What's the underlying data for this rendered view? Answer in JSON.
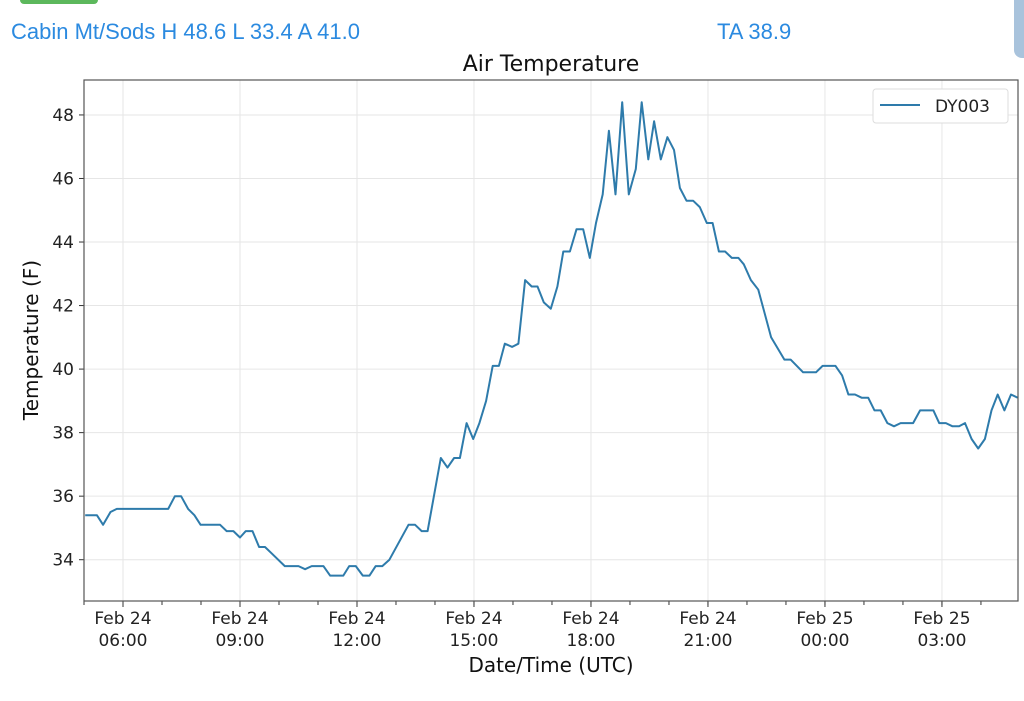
{
  "header": {
    "station_summary": "Cabin Mt/Sods H 48.6 L 33.4 A 41.0",
    "current": "TA 38.9"
  },
  "colors": {
    "line": "#2e7bab",
    "header_text": "#2b8ae0",
    "tab": "#5cb85c"
  },
  "chart_data": {
    "type": "line",
    "title": "Air Temperature",
    "xlabel": "Date/Time (UTC)",
    "ylabel": "Temperature (F)",
    "x_units": "hours since Feb 24 00:00 UTC",
    "xlim": [
      5.0,
      28.95
    ],
    "ylim": [
      32.7,
      49.1
    ],
    "grid": true,
    "legend_position": "top-right",
    "yticks": [
      34,
      36,
      38,
      40,
      42,
      44,
      46,
      48
    ],
    "ytick_labels": [
      "34",
      "36",
      "38",
      "40",
      "42",
      "44",
      "46",
      "48"
    ],
    "xticks": [
      6,
      9,
      12,
      15,
      18,
      21,
      24,
      27
    ],
    "xtick_labels": [
      [
        "Feb 24",
        "06:00"
      ],
      [
        "Feb 24",
        "09:00"
      ],
      [
        "Feb 24",
        "12:00"
      ],
      [
        "Feb 24",
        "15:00"
      ],
      [
        "Feb 24",
        "18:00"
      ],
      [
        "Feb 24",
        "21:00"
      ],
      [
        "Feb 25",
        "00:00"
      ],
      [
        "Feb 25",
        "03:00"
      ]
    ],
    "series": [
      {
        "name": "DY003",
        "x": [
          5.03,
          5.33,
          5.49,
          5.68,
          5.84,
          7.16,
          7.33,
          7.49,
          7.67,
          7.83,
          7.99,
          8.49,
          8.66,
          8.83,
          9.0,
          9.15,
          9.32,
          9.49,
          9.64,
          9.81,
          10.15,
          10.5,
          10.67,
          10.84,
          11.14,
          11.31,
          11.65,
          11.8,
          11.97,
          12.15,
          12.32,
          12.48,
          12.65,
          12.83,
          13.32,
          13.49,
          13.66,
          13.81,
          14.15,
          14.32,
          14.49,
          14.64,
          14.81,
          14.98,
          15.14,
          15.31,
          15.48,
          15.64,
          15.79,
          15.98,
          16.14,
          16.31,
          16.48,
          16.63,
          16.79,
          16.97,
          17.14,
          17.29,
          17.46,
          17.63,
          17.8,
          17.97,
          18.13,
          18.3,
          18.46,
          18.63,
          18.8,
          18.97,
          19.15,
          19.3,
          19.47,
          19.62,
          19.79,
          19.96,
          20.13,
          20.28,
          20.45,
          20.62,
          20.79,
          20.97,
          21.12,
          21.28,
          21.44,
          21.61,
          21.78,
          21.92,
          22.1,
          22.29,
          22.62,
          22.96,
          23.12,
          23.44,
          23.77,
          23.94,
          24.27,
          24.44,
          24.6,
          24.77,
          24.94,
          25.11,
          25.27,
          25.43,
          25.6,
          25.77,
          25.94,
          26.26,
          26.44,
          26.78,
          26.93,
          27.1,
          27.27,
          27.44,
          27.59,
          27.76,
          27.93,
          28.1,
          28.27,
          28.43,
          28.6,
          28.77,
          28.94
        ],
        "values": [
          35.4,
          35.4,
          35.1,
          35.5,
          35.6,
          35.6,
          36.0,
          36.0,
          35.6,
          35.4,
          35.1,
          35.1,
          34.9,
          34.9,
          34.7,
          34.9,
          34.9,
          34.4,
          34.4,
          34.2,
          33.8,
          33.8,
          33.7,
          33.8,
          33.8,
          33.5,
          33.5,
          33.8,
          33.8,
          33.5,
          33.5,
          33.8,
          33.8,
          34.0,
          35.1,
          35.1,
          34.9,
          34.9,
          37.2,
          36.9,
          37.2,
          37.2,
          38.3,
          37.8,
          38.3,
          39.0,
          40.1,
          40.1,
          40.8,
          40.7,
          40.8,
          42.8,
          42.6,
          42.6,
          42.1,
          41.9,
          42.6,
          43.7,
          43.7,
          44.4,
          44.4,
          43.5,
          44.6,
          45.5,
          47.5,
          45.5,
          48.4,
          45.5,
          46.3,
          48.4,
          46.6,
          47.8,
          46.6,
          47.3,
          46.9,
          45.7,
          45.3,
          45.3,
          45.1,
          44.6,
          44.6,
          43.7,
          43.7,
          43.5,
          43.5,
          43.3,
          42.8,
          42.5,
          41.0,
          40.3,
          40.3,
          39.9,
          39.9,
          40.1,
          40.1,
          39.8,
          39.2,
          39.2,
          39.1,
          39.1,
          38.7,
          38.7,
          38.3,
          38.2,
          38.3,
          38.3,
          38.7,
          38.7,
          38.3,
          38.3,
          38.2,
          38.2,
          38.3,
          37.8,
          37.5,
          37.8,
          38.7,
          39.2,
          38.7,
          39.2,
          39.1
        ]
      }
    ]
  }
}
